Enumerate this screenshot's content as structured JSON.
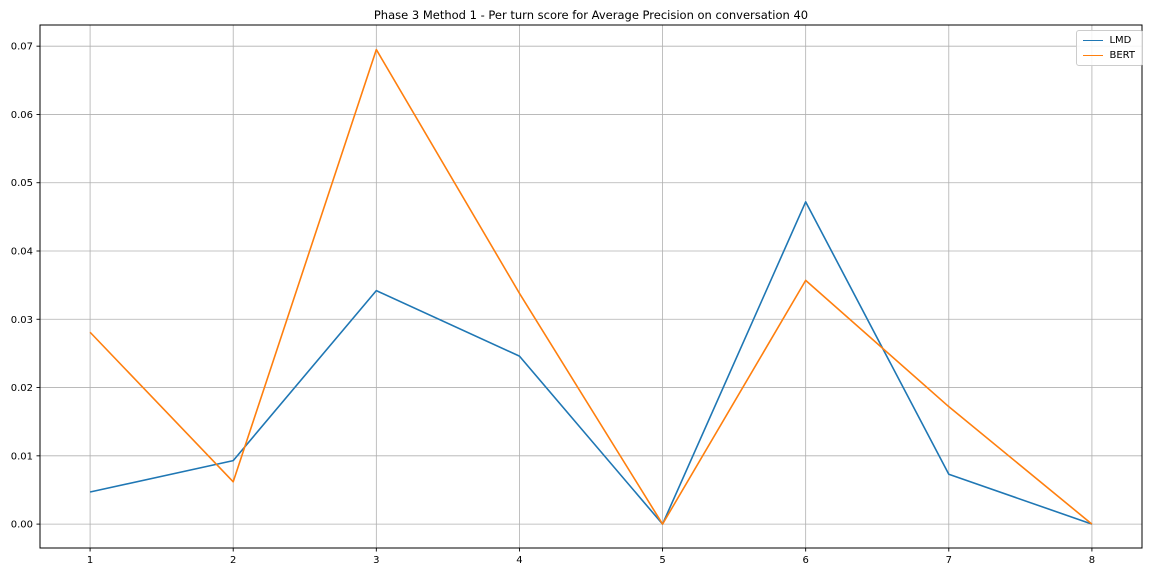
{
  "chart_data": {
    "type": "line",
    "title": "Phase 3 Method 1 - Per turn score for Average Precision on conversation 40",
    "xlabel": "",
    "ylabel": "",
    "x": [
      1,
      2,
      3,
      4,
      5,
      6,
      7,
      8
    ],
    "xtick_labels": [
      "1",
      "2",
      "3",
      "4",
      "5",
      "6",
      "7",
      "8"
    ],
    "ytick_values": [
      0.0,
      0.01,
      0.02,
      0.03,
      0.04,
      0.05,
      0.06,
      0.07
    ],
    "ytick_labels": [
      "0.00",
      "0.01",
      "0.02",
      "0.03",
      "0.04",
      "0.05",
      "0.06",
      "0.07"
    ],
    "xlim": [
      0.65,
      8.35
    ],
    "ylim": [
      -0.0035,
      0.0731
    ],
    "grid": true,
    "legend_position": "upper right",
    "series": [
      {
        "name": "LMD",
        "color": "#1f77b4",
        "values": [
          0.0047,
          0.0093,
          0.0342,
          0.0246,
          0.0,
          0.0472,
          0.0073,
          0.0
        ]
      },
      {
        "name": "BERT",
        "color": "#ff7f0e",
        "values": [
          0.0281,
          0.0062,
          0.0695,
          0.0338,
          0.0,
          0.0357,
          0.0172,
          0.0
        ]
      }
    ],
    "grid_color": "#b0b0b0",
    "spine_color": "#000000"
  }
}
